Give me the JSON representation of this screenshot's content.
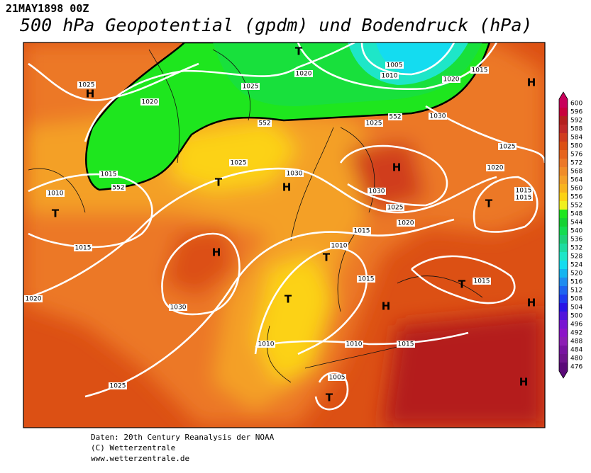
{
  "header": {
    "date": "21MAY1898 00Z",
    "title": "500 hPa Geopotential (gpdm) und Bodendruck (hPa)"
  },
  "map": {
    "isobar_labels": [
      "1025",
      "1020",
      "1025",
      "1020",
      "1005",
      "1010",
      "1020",
      "1015",
      "1030",
      "1025",
      "552",
      "552",
      "552",
      "1015",
      "1010",
      "1025",
      "1030",
      "1030",
      "1025",
      "1020",
      "1015",
      "1010",
      "1015",
      "1015",
      "1015",
      "1020",
      "1030",
      "1010",
      "1010",
      "1015",
      "1005",
      "1025",
      "1025",
      "1020",
      "1015",
      "1015"
    ],
    "pressure_centers": [
      "H",
      "T",
      "H",
      "H",
      "T",
      "H",
      "T",
      "T",
      "H",
      "T",
      "T",
      "T",
      "H",
      "H",
      "H",
      "T"
    ]
  },
  "colorbar": {
    "ticks": [
      "600",
      "596",
      "592",
      "588",
      "584",
      "580",
      "576",
      "572",
      "568",
      "564",
      "560",
      "556",
      "552",
      "548",
      "544",
      "540",
      "536",
      "532",
      "528",
      "524",
      "520",
      "516",
      "512",
      "508",
      "504",
      "500",
      "496",
      "492",
      "488",
      "484",
      "480",
      "476"
    ],
    "colors": [
      "#c8005a",
      "#c8003c",
      "#b41e1e",
      "#c02828",
      "#d03c1e",
      "#dc5014",
      "#e6641e",
      "#ec7828",
      "#f08c28",
      "#f4a028",
      "#f8b41e",
      "#fcd214",
      "#f0f01e",
      "#1ee61e",
      "#14d232",
      "#14dc50",
      "#1ed278",
      "#1edca0",
      "#1ee6c8",
      "#14dcf0",
      "#14b4f0",
      "#1e8cf0",
      "#1e64f0",
      "#1e3cf0",
      "#2814e6",
      "#5014dc",
      "#7814d2",
      "#8c14c8",
      "#8c1eb4",
      "#7814a0",
      "#6e148c",
      "#5a0a78"
    ]
  },
  "footer": [
    "Daten: 20th Century Reanalysis der NOAA",
    "(C) Wetterzentrale",
    "www.wetterzentrale.de"
  ]
}
